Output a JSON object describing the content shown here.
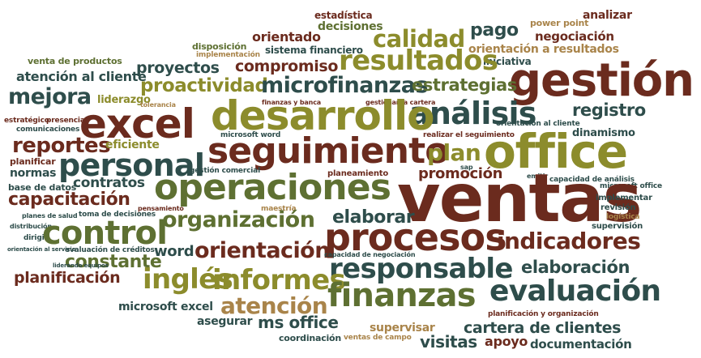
{
  "palette": {
    "green": "#5e7032",
    "olive": "#8c8c2c",
    "brown": "#6b2b1e",
    "slate": "#2e4d4b",
    "tan": "#a9844a"
  },
  "words": [
    "estadística",
    "analizar",
    "power point",
    "decisiones",
    "pago",
    "negociación",
    "calidad",
    "orientado",
    "disposición",
    "implementación",
    "sistema financiero",
    "orientación a resultados",
    "iniciativa",
    "gestión",
    "venta de productos",
    "proyectos",
    "compromiso",
    "resultados",
    "atención al cliente",
    "proactividad",
    "microfinanzas",
    "estrategias",
    "mejora",
    "liderazgo",
    "tolerancia",
    "finanzas y banca",
    "gestionar la cartera",
    "análisis",
    "registro",
    "excel",
    "desarrollo",
    "orientación al cliente",
    "office",
    "estratégico",
    "presencia",
    "comunicaciones",
    "microsoft word",
    "realizar el seguimiento",
    "dinamismo",
    "reportes",
    "eficiente",
    "seguimiento",
    "plan",
    "planificar",
    "personal",
    "normas",
    "gestión comercial",
    "sap",
    "emitir",
    "base de datos",
    "promoción",
    "capacidad de análisis",
    "microsoft office",
    "contratos",
    "operaciones",
    "planeamiento",
    "capacitación",
    "ventas",
    "implementar",
    "revisión",
    "planes de salud",
    "toma de decisiones",
    "pensamiento",
    "maestría",
    "logística",
    "organización",
    "elaborar",
    "distribución",
    "dirigir",
    "control",
    "supervisión",
    "procesos",
    "indicadores",
    "word",
    "orientación",
    "orientación al servicio",
    "evaluación de créditos",
    "capacidad de negociación",
    "constante",
    "responsable",
    "elaboración",
    "liderando equipos",
    "planificación",
    "informes",
    "inglés",
    "evaluación",
    "finanzas",
    "microsoft excel",
    "atención",
    "planificación y organización",
    "asegurar",
    "ms office",
    "supervisar",
    "cartera de clientes",
    "coordinación",
    "ventas de campo",
    "visitas",
    "apoyo",
    "documentación"
  ]
}
